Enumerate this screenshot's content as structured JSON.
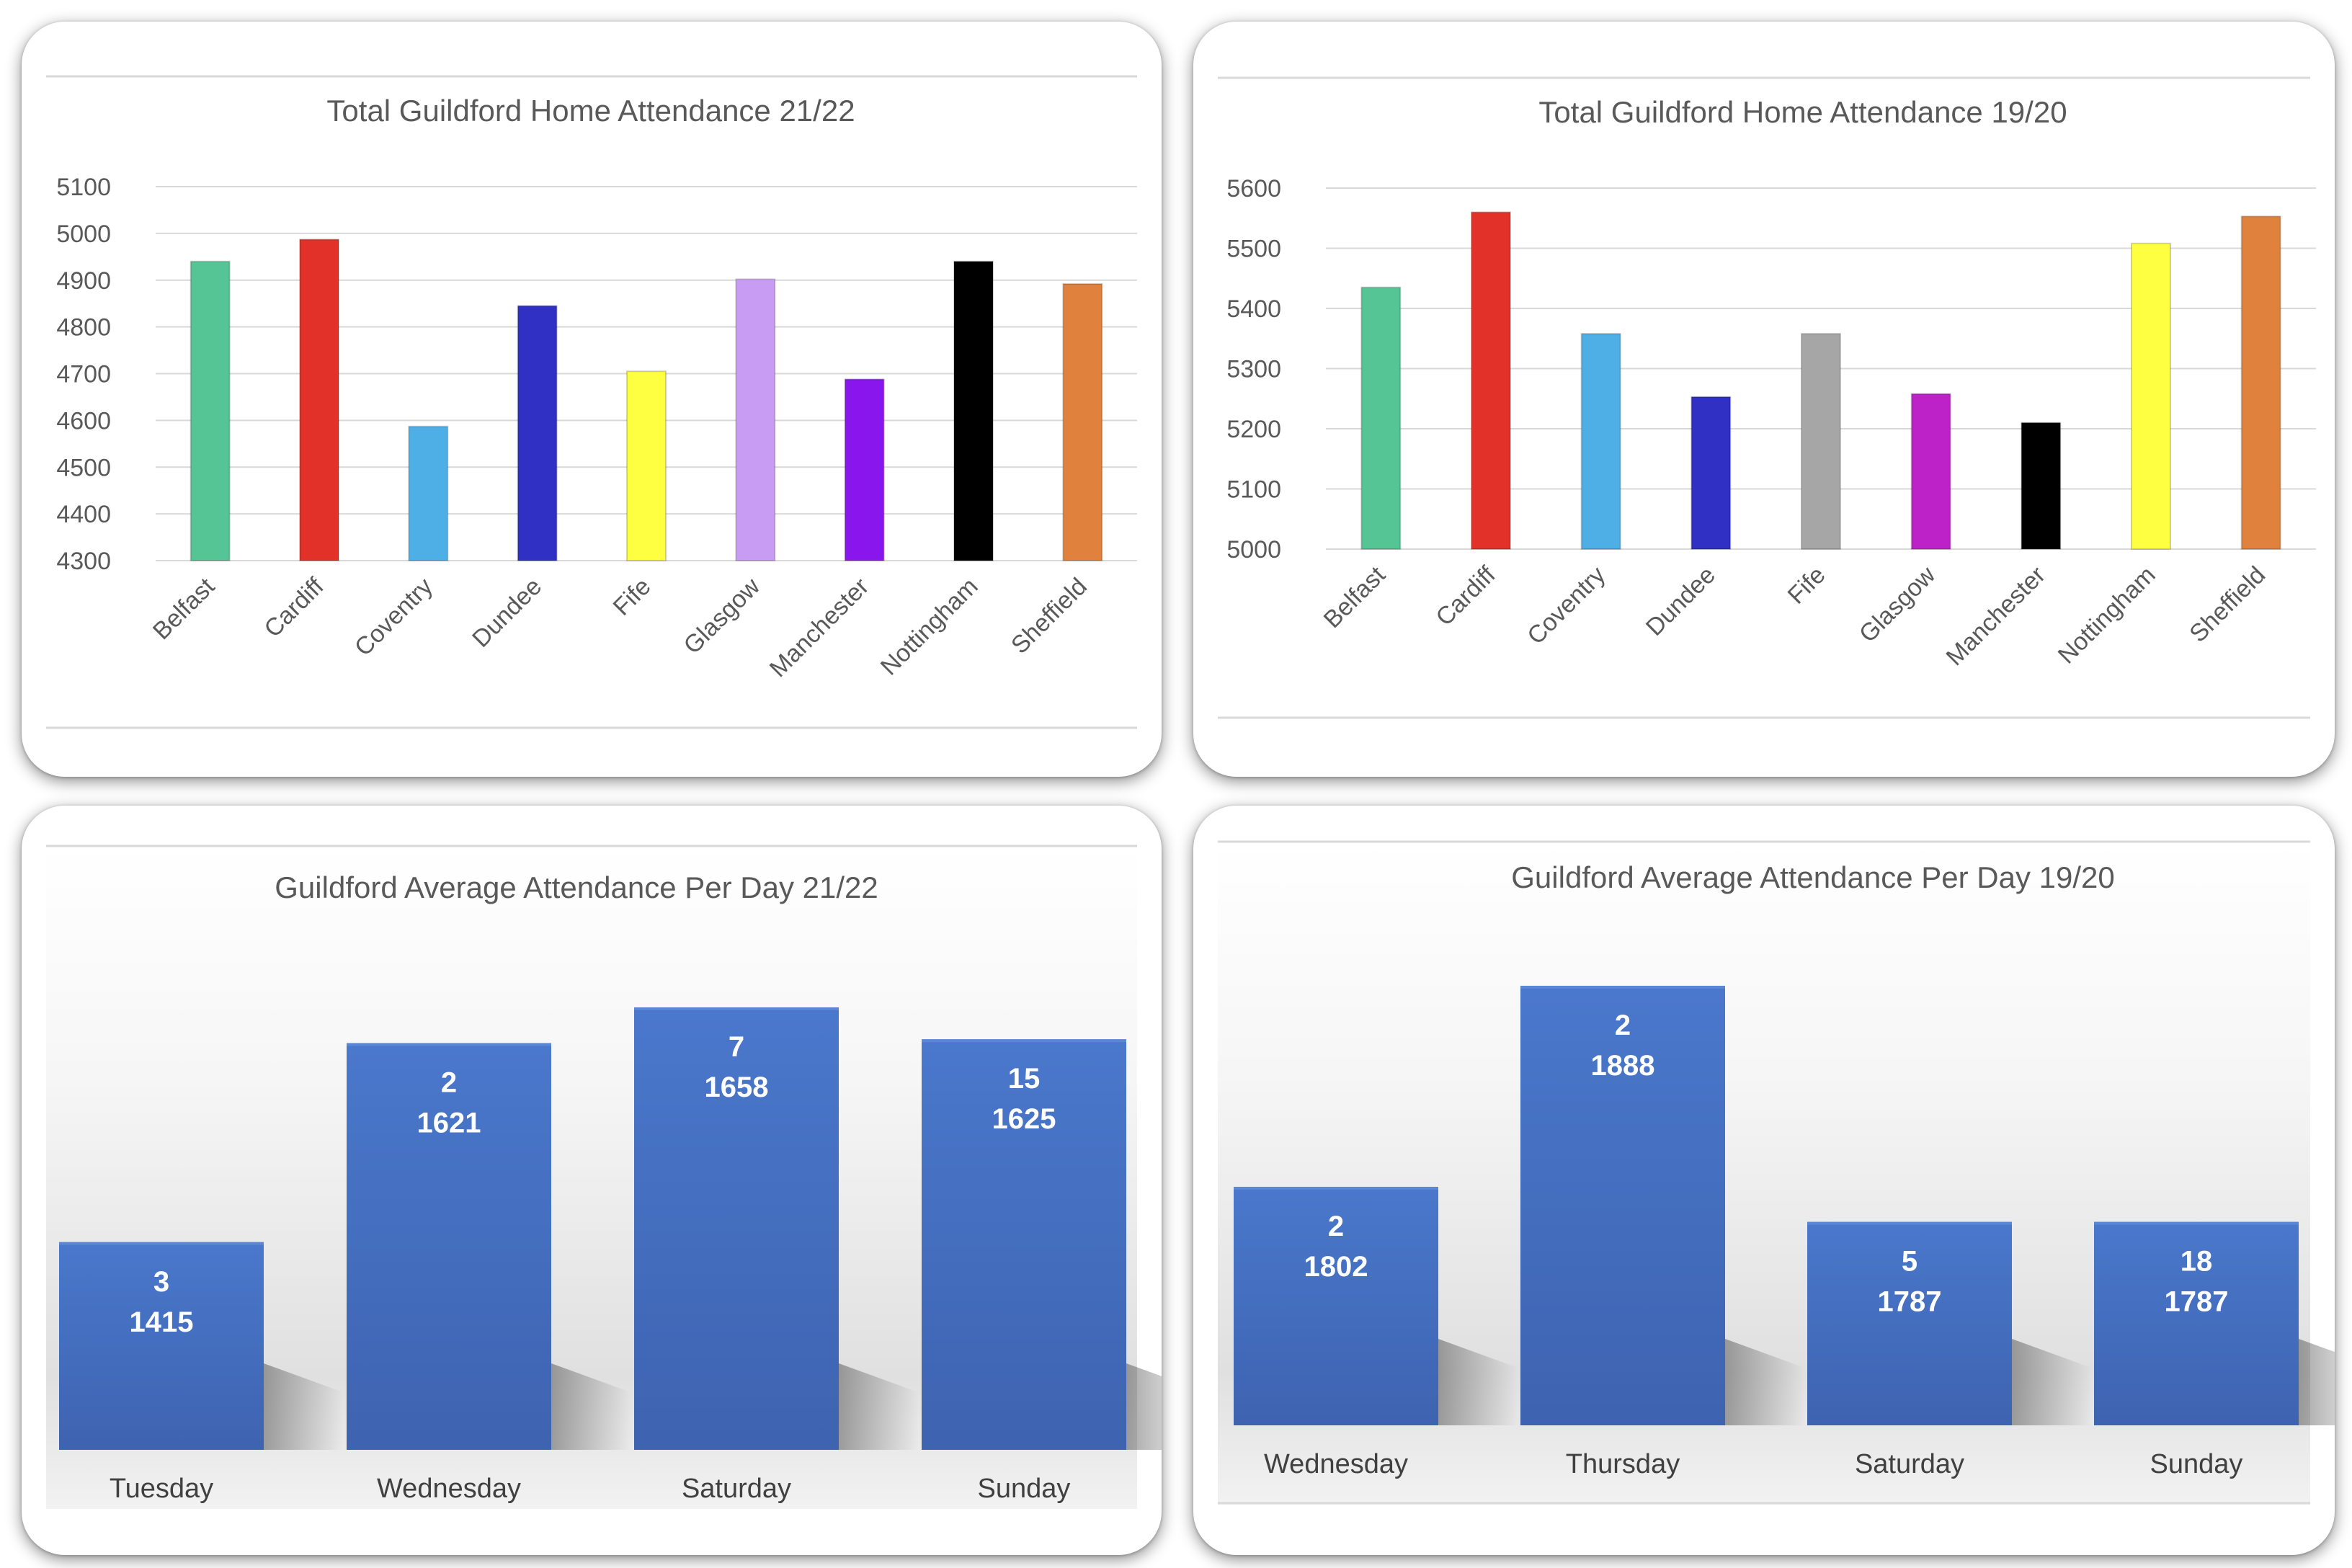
{
  "chart_data": [
    {
      "id": "chart1",
      "type": "bar",
      "title": "Total Guildford Home Attendance 21/22",
      "xlabel": "",
      "ylabel": "",
      "ylim": [
        4300,
        5100
      ],
      "yticks": [
        "4300",
        "4400",
        "4500",
        "4600",
        "4700",
        "4800",
        "4900",
        "5000",
        "5100"
      ],
      "grid": true,
      "categories": [
        "Belfast",
        "Cardiff",
        "Coventry",
        "Dundee",
        "Fife",
        "Glasgow",
        "Manchester",
        "Nottingham",
        "Sheffield"
      ],
      "values": [
        4940,
        4987,
        4587,
        4845,
        4705,
        4902,
        4688,
        4940,
        4892
      ],
      "colors": [
        "#55c595",
        "#e23128",
        "#4eaee6",
        "#3030c4",
        "#ffff42",
        "#c89cf2",
        "#8a16ee",
        "#000000",
        "#e0823e"
      ]
    },
    {
      "id": "chart2",
      "type": "bar",
      "title": "Total Guildford Home Attendance 19/20",
      "xlabel": "",
      "ylabel": "",
      "ylim": [
        5000,
        5600
      ],
      "yticks": [
        "5000",
        "5100",
        "5200",
        "5300",
        "5400",
        "5500",
        "5600"
      ],
      "grid": true,
      "categories": [
        "Belfast",
        "Cardiff",
        "Coventry",
        "Dundee",
        "Fife",
        "Glasgow",
        "Manchester",
        "Nottingham",
        "Sheffield"
      ],
      "values": [
        5435,
        5560,
        5358,
        5253,
        5358,
        5258,
        5210,
        5508,
        5553
      ],
      "colors": [
        "#55c595",
        "#e23128",
        "#4eaee6",
        "#3030c4",
        "#a6a6a6",
        "#bd22c8",
        "#000000",
        "#ffff42",
        "#e0823e"
      ]
    },
    {
      "id": "chart3",
      "type": "bar",
      "title": "Guildford Average Attendance Per Day 21/22",
      "xlabel": "",
      "ylabel": "",
      "ylim": [
        0,
        1700
      ],
      "grid": false,
      "categories": [
        "Tuesday",
        "Wednesday",
        "Saturday",
        "Sunday"
      ],
      "values": [
        1415,
        1621,
        1658,
        1625
      ],
      "counts": [
        "3",
        "2",
        "7",
        "15"
      ],
      "value_labels": [
        "1415",
        "1621",
        "1658",
        "1625"
      ],
      "colors": [
        "#4472c4",
        "#4472c4",
        "#4472c4",
        "#4472c4"
      ]
    },
    {
      "id": "chart4",
      "type": "bar",
      "title": "Guildford Average Attendance Per Day 19/20",
      "xlabel": "",
      "ylabel": "",
      "ylim": [
        0,
        2000
      ],
      "grid": false,
      "categories": [
        "Wednesday",
        "Thursday",
        "Saturday",
        "Sunday"
      ],
      "values": [
        1802,
        1888,
        1787,
        1787
      ],
      "counts": [
        "2",
        "2",
        "5",
        "18"
      ],
      "value_labels": [
        "1802",
        "1888",
        "1787",
        "1787"
      ],
      "colors": [
        "#4472c4",
        "#4472c4",
        "#4472c4",
        "#4472c4"
      ]
    }
  ]
}
